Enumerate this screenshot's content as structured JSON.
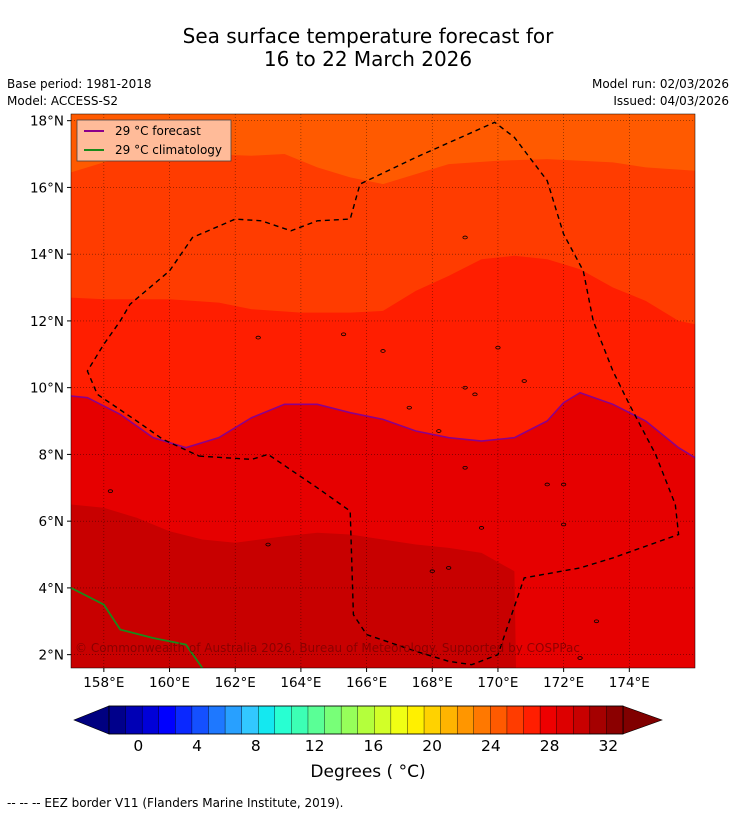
{
  "header": {
    "title_line1": "Sea surface temperature forecast for",
    "title_line2": "16 to 22 March 2026",
    "base_period": "Base period: 1981-2018",
    "model": "Model: ACCESS-S2",
    "model_run": "Model run: 02/03/2026",
    "issued": "Issued: 04/03/2026"
  },
  "map": {
    "lon_ticks": [
      "158°E",
      "160°E",
      "162°E",
      "164°E",
      "166°E",
      "168°E",
      "170°E",
      "172°E",
      "174°E"
    ],
    "lat_ticks": [
      "18°N",
      "16°N",
      "14°N",
      "12°N",
      "10°N",
      "8°N",
      "6°N",
      "4°N",
      "2°N"
    ],
    "extent": {
      "lon_min": 157.0,
      "lon_max": 176.0,
      "lat_min": 1.6,
      "lat_max": 18.2
    },
    "legend": [
      {
        "label": "29 °C  forecast",
        "color": "#8b008b"
      },
      {
        "label": "29 °C  climatology",
        "color": "#1a8a1a"
      }
    ],
    "copyright": "© Commonwealth of Australia 2026, Bureau of Meteorology. Supported by COSPPac",
    "band_colors": [
      "#ff5a00",
      "#ff3c00",
      "#ff1e00",
      "#e60000",
      "#c80000"
    ],
    "forecast_29C_contour": [
      [
        157.0,
        9.75
      ],
      [
        157.5,
        9.7
      ],
      [
        158.5,
        9.2
      ],
      [
        159.5,
        8.5
      ],
      [
        160.5,
        8.2
      ],
      [
        161.5,
        8.5
      ],
      [
        162.5,
        9.1
      ],
      [
        163.5,
        9.5
      ],
      [
        164.5,
        9.5
      ],
      [
        165.5,
        9.25
      ],
      [
        166.5,
        9.05
      ],
      [
        167.5,
        8.7
      ],
      [
        168.5,
        8.5
      ],
      [
        169.5,
        8.4
      ],
      [
        170.5,
        8.5
      ],
      [
        171.5,
        9.0
      ],
      [
        172.0,
        9.55
      ],
      [
        172.5,
        9.85
      ],
      [
        173.5,
        9.5
      ],
      [
        174.5,
        9.0
      ],
      [
        175.5,
        8.2
      ],
      [
        176.0,
        7.9
      ]
    ],
    "climatology_29C_contour": [
      [
        157.0,
        4.0
      ],
      [
        158.0,
        3.5
      ],
      [
        158.5,
        2.75
      ],
      [
        159.5,
        2.5
      ],
      [
        160.5,
        2.3
      ],
      [
        161.0,
        1.6
      ]
    ],
    "eez_border": [
      [
        160.9,
        7.95
      ],
      [
        162.5,
        7.85
      ],
      [
        163.0,
        8.0
      ],
      [
        164.5,
        7.0
      ],
      [
        165.5,
        6.3
      ],
      [
        165.6,
        3.2
      ],
      [
        166.0,
        2.6
      ],
      [
        167.5,
        2.1
      ],
      [
        168.5,
        1.8
      ],
      [
        169.2,
        1.7
      ],
      [
        170.0,
        2.0
      ],
      [
        170.8,
        4.3
      ],
      [
        172.5,
        4.6
      ],
      [
        173.5,
        4.9
      ],
      [
        175.5,
        5.6
      ],
      [
        175.4,
        6.5
      ],
      [
        174.8,
        8.0
      ],
      [
        174.0,
        9.5
      ],
      [
        173.5,
        10.5
      ],
      [
        172.9,
        12.0
      ],
      [
        172.6,
        13.5
      ],
      [
        172.0,
        14.6
      ],
      [
        171.5,
        16.2
      ],
      [
        170.5,
        17.5
      ],
      [
        169.9,
        17.95
      ],
      [
        167.5,
        16.9
      ],
      [
        165.8,
        16.1
      ],
      [
        165.5,
        15.05
      ],
      [
        164.5,
        15.0
      ],
      [
        163.7,
        14.7
      ],
      [
        162.8,
        15.0
      ],
      [
        162.0,
        15.05
      ],
      [
        160.7,
        14.5
      ],
      [
        160.0,
        13.5
      ],
      [
        158.8,
        12.5
      ],
      [
        158.5,
        12.0
      ],
      [
        158.0,
        11.3
      ],
      [
        157.5,
        10.5
      ],
      [
        157.8,
        9.8
      ],
      [
        159.0,
        9.0
      ],
      [
        159.8,
        8.45
      ],
      [
        160.9,
        7.95
      ]
    ],
    "islands": [
      [
        158.2,
        6.9
      ],
      [
        163.0,
        5.3
      ],
      [
        168.0,
        4.5
      ],
      [
        168.5,
        4.6
      ],
      [
        169.0,
        7.6
      ],
      [
        169.5,
        5.8
      ],
      [
        171.5,
        7.1
      ],
      [
        172.0,
        7.1
      ],
      [
        172.0,
        5.9
      ],
      [
        173.0,
        3.0
      ],
      [
        162.7,
        11.5
      ],
      [
        165.3,
        11.6
      ],
      [
        166.5,
        11.1
      ],
      [
        167.3,
        9.4
      ],
      [
        168.2,
        8.7
      ],
      [
        169.0,
        10.0
      ],
      [
        169.3,
        9.8
      ],
      [
        170.0,
        11.2
      ],
      [
        170.8,
        10.2
      ],
      [
        169.0,
        14.5
      ],
      [
        172.5,
        1.9
      ]
    ]
  },
  "colorbar": {
    "min": -2,
    "max": 33,
    "tick_labels": [
      "0",
      "4",
      "8",
      "12",
      "16",
      "20",
      "24",
      "28",
      "32"
    ],
    "tick_values": [
      0,
      4,
      8,
      12,
      16,
      20,
      24,
      28,
      32
    ],
    "colors": [
      "#00008b",
      "#0000b5",
      "#0000d8",
      "#0000ff",
      "#0a28ff",
      "#1450ff",
      "#1e78ff",
      "#28a0ff",
      "#32c8ff",
      "#14e8f0",
      "#28ffd2",
      "#3cffb4",
      "#5aff96",
      "#78ff78",
      "#96ff5a",
      "#b4ff3c",
      "#d2ff28",
      "#f0ff14",
      "#fff000",
      "#ffd200",
      "#ffb400",
      "#ff9600",
      "#ff7800",
      "#ff5a00",
      "#ff3c00",
      "#ff1e00",
      "#ee0000",
      "#dd0000",
      "#c80000",
      "#a50000",
      "#8b0000"
    ],
    "low_color": "#000080",
    "high_color": "#800000",
    "label": "Degrees ( °C)"
  },
  "footer": {
    "eez_note": "--  --  -- EEZ border V11 (Flanders Marine Institute, 2019)."
  }
}
